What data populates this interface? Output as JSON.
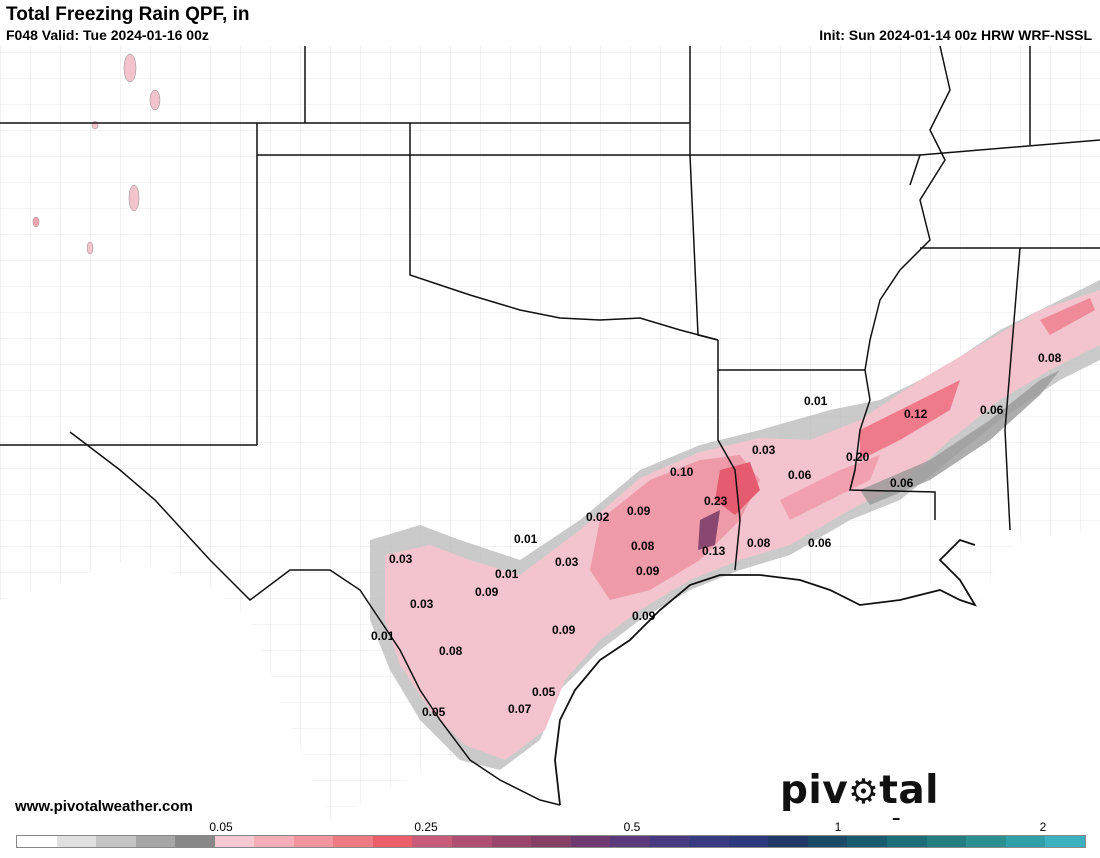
{
  "header": {
    "title": "Total Freezing Rain QPF, in",
    "valid": "F048 Valid: Tue 2024-01-16 00z",
    "init": "Init: Sun 2024-01-14 00z HRW WRF-NSSL"
  },
  "footer": {
    "website": "www.pivotalweather.com",
    "brand_left": "piv",
    "brand_right": "tal weather"
  },
  "map_labels": [
    {
      "text": "0.01"
    },
    {
      "text": "0.03"
    },
    {
      "text": "0.06"
    },
    {
      "text": "0.20"
    },
    {
      "text": "0.12"
    },
    {
      "text": "0.06"
    },
    {
      "text": "0.08"
    },
    {
      "text": "0.06"
    },
    {
      "text": "0.10"
    },
    {
      "text": "0.23"
    },
    {
      "text": "0.02"
    },
    {
      "text": "0.09"
    },
    {
      "text": "0.01"
    },
    {
      "text": "0.08"
    },
    {
      "text": "0.13"
    },
    {
      "text": "0.08"
    },
    {
      "text": "0.06"
    },
    {
      "text": "0.03"
    },
    {
      "text": "0.09"
    },
    {
      "text": "0.03"
    },
    {
      "text": "0.01"
    },
    {
      "text": "0.09"
    },
    {
      "text": "0.03"
    },
    {
      "text": "0.09"
    },
    {
      "text": "0.01"
    },
    {
      "text": "0.09"
    },
    {
      "text": "0.08"
    },
    {
      "text": "0.05"
    },
    {
      "text": "0.05"
    },
    {
      "text": "0.07"
    }
  ],
  "colorbar": {
    "ticks": [
      "0.05",
      "0.25",
      "0.5",
      "1",
      "2"
    ],
    "colors": [
      "#ffffff",
      "#e0e0e0",
      "#c4c4c4",
      "#a6a6a6",
      "#888888",
      "#f6c9d2",
      "#f3aeb8",
      "#f1949e",
      "#ee7a84",
      "#ec5f6a",
      "#c85a7a",
      "#b04e72",
      "#9a466c",
      "#864066",
      "#6e3a70",
      "#5a3a7a",
      "#483a80",
      "#383a82",
      "#2c3a7c",
      "#203866",
      "#1a4a66",
      "#1a5c6e",
      "#1e6e78",
      "#248080",
      "#2a9090",
      "#30a0a8",
      "#3ab0c0"
    ]
  }
}
